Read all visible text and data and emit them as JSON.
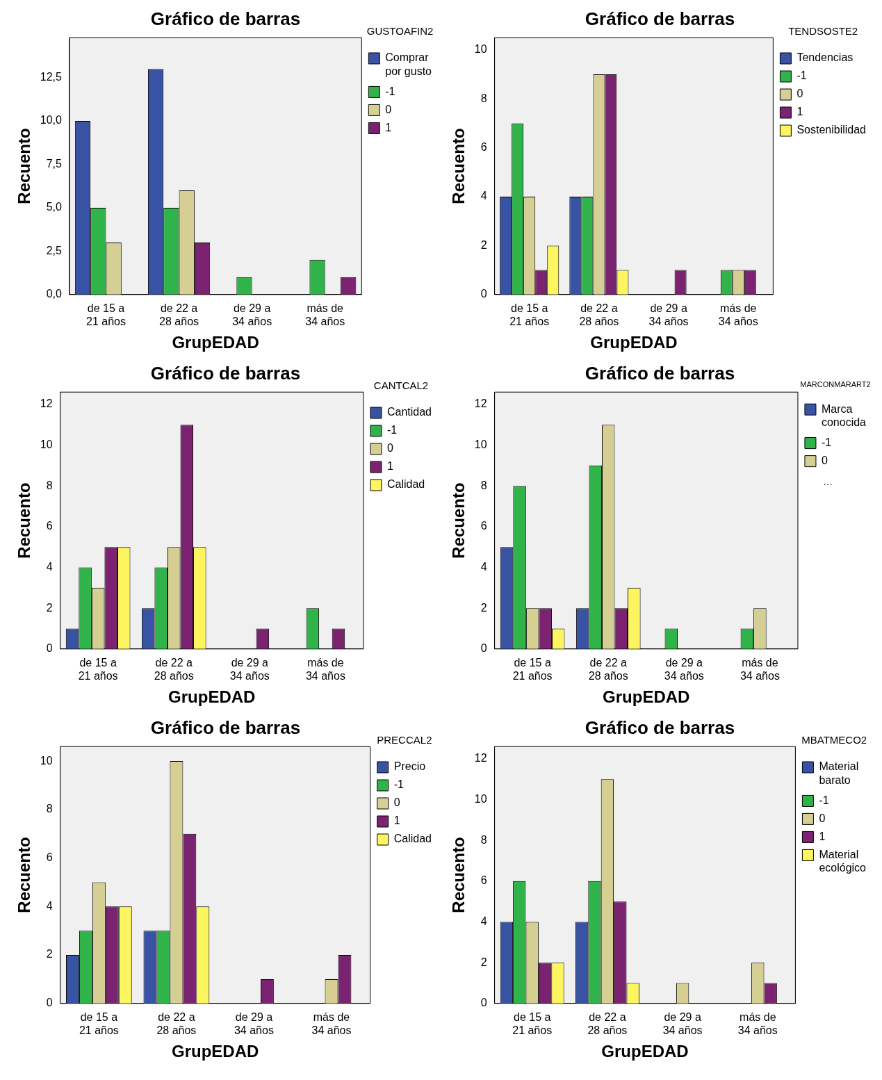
{
  "chart_data": [
    {
      "type": "bar",
      "title": "Gráfico de barras",
      "xlabel": "GrupEDAD",
      "ylabel": "Recuento",
      "legend_title": "GUSTOAFIN2",
      "legend": "right",
      "categories": [
        "de 15 a 21 años",
        "de 22 a 28 años",
        "de 29 a 34 años",
        "más de 34 años"
      ],
      "ylim": [
        0,
        14.8
      ],
      "yticks": [
        {
          "value": 0,
          "label": "0,0"
        },
        {
          "value": 2.5,
          "label": "2,5"
        },
        {
          "value": 5,
          "label": "5,0"
        },
        {
          "value": 7.5,
          "label": "7,5"
        },
        {
          "value": 10,
          "label": "10,0"
        },
        {
          "value": 12.5,
          "label": "12,5"
        }
      ],
      "grid": false,
      "series": [
        {
          "name": "Comprar por gusto",
          "color": "#3953a4",
          "values": [
            10,
            13,
            0,
            0
          ]
        },
        {
          "name": "-1",
          "color": "#30b44a",
          "values": [
            5,
            5,
            1,
            2
          ]
        },
        {
          "name": "0",
          "color": "#d5cf94",
          "values": [
            3,
            6,
            0,
            0
          ]
        },
        {
          "name": "1",
          "color": "#7b2270",
          "values": [
            0,
            3,
            0,
            1
          ]
        }
      ]
    },
    {
      "type": "bar",
      "title": "Gráfico de barras",
      "xlabel": "GrupEDAD",
      "ylabel": "Recuento",
      "legend_title": "TENDSOSTE2",
      "legend": "right",
      "categories": [
        "de 15 a 21 años",
        "de 22 a 28 años",
        "de 29 a 34 años",
        "más de 34 años"
      ],
      "ylim": [
        0,
        10.5
      ],
      "yticks": [
        0,
        2,
        4,
        6,
        8,
        10
      ],
      "grid": false,
      "series": [
        {
          "name": "Tendencias",
          "color": "#3953a4",
          "values": [
            4,
            4,
            0,
            0
          ]
        },
        {
          "name": "-1",
          "color": "#30b44a",
          "values": [
            7,
            4,
            0,
            1
          ]
        },
        {
          "name": "0",
          "color": "#d5cf94",
          "values": [
            4,
            9,
            0,
            1
          ]
        },
        {
          "name": "1",
          "color": "#7b2270",
          "values": [
            1,
            9,
            1,
            1
          ]
        },
        {
          "name": "Sostenibilidad",
          "color": "#fcf55f",
          "values": [
            2,
            1,
            0,
            0
          ]
        }
      ]
    },
    {
      "type": "bar",
      "title": "Gráfico de barras",
      "xlabel": "GrupEDAD",
      "ylabel": "Recuento",
      "legend_title": "CANTCAL2",
      "legend": "right",
      "categories": [
        "de 15 a 21 años",
        "de 22 a 28 años",
        "de 29 a 34 años",
        "más de 34 años"
      ],
      "ylim": [
        0,
        12.6
      ],
      "yticks": [
        0,
        2,
        4,
        6,
        8,
        10,
        12
      ],
      "grid": false,
      "series": [
        {
          "name": "Cantidad",
          "color": "#3953a4",
          "values": [
            1,
            2,
            0,
            0
          ]
        },
        {
          "name": "-1",
          "color": "#30b44a",
          "values": [
            4,
            4,
            0,
            2
          ]
        },
        {
          "name": "0",
          "color": "#d5cf94",
          "values": [
            3,
            5,
            0,
            0
          ]
        },
        {
          "name": "1",
          "color": "#7b2270",
          "values": [
            5,
            11,
            1,
            1
          ]
        },
        {
          "name": "Calidad",
          "color": "#fcf55f",
          "values": [
            5,
            5,
            0,
            0
          ]
        }
      ]
    },
    {
      "type": "bar",
      "title": "Gráfico de barras",
      "xlabel": "GrupEDAD",
      "ylabel": "Recuento",
      "legend_title": "MARCONMARART2",
      "legend": "right",
      "annotations": [
        "…"
      ],
      "categories": [
        "de 15 a 21 años",
        "de 22 a 28 años",
        "de 29 a 34 años",
        "más de 34 años"
      ],
      "ylim": [
        0,
        12.6
      ],
      "yticks": [
        0,
        2,
        4,
        6,
        8,
        10,
        12
      ],
      "grid": false,
      "series": [
        {
          "name": "Marca conocida",
          "color": "#3953a4",
          "values": [
            5,
            2,
            0,
            0
          ]
        },
        {
          "name": "-1",
          "color": "#30b44a",
          "values": [
            8,
            9,
            1,
            1
          ]
        },
        {
          "name": "0",
          "color": "#d5cf94",
          "values": [
            2,
            11,
            0,
            2
          ]
        },
        {
          "color": "#7b2270",
          "values": [
            2,
            2,
            0,
            0
          ]
        },
        {
          "color": "#fcf55f",
          "values": [
            1,
            3,
            0,
            0
          ]
        }
      ]
    },
    {
      "type": "bar",
      "title": "Gráfico de barras",
      "xlabel": "GrupEDAD",
      "ylabel": "Recuento",
      "legend_title": "PRECCAL2",
      "legend": "right",
      "categories": [
        "de 15 a 21 años",
        "de 22 a 28 años",
        "de 29 a 34 años",
        "más de 34 años"
      ],
      "ylim": [
        0,
        10.6
      ],
      "yticks": [
        0,
        2,
        4,
        6,
        8,
        10
      ],
      "grid": false,
      "series": [
        {
          "name": "Precio",
          "color": "#3953a4",
          "values": [
            2,
            3,
            0,
            0
          ]
        },
        {
          "name": "-1",
          "color": "#30b44a",
          "values": [
            3,
            3,
            0,
            0
          ]
        },
        {
          "name": "0",
          "color": "#d5cf94",
          "values": [
            5,
            10,
            0,
            1
          ]
        },
        {
          "name": "1",
          "color": "#7b2270",
          "values": [
            4,
            7,
            1,
            2
          ]
        },
        {
          "name": "Calidad",
          "color": "#fcf55f",
          "values": [
            4,
            4,
            0,
            0
          ]
        }
      ]
    },
    {
      "type": "bar",
      "title": "Gráfico de barras",
      "xlabel": "GrupEDAD",
      "ylabel": "Recuento",
      "legend_title": "MBATMECO2",
      "legend": "right",
      "categories": [
        "de 15 a 21 años",
        "de 22 a 28 años",
        "de 29 a 34 años",
        "más de 34 años"
      ],
      "ylim": [
        0,
        12.6
      ],
      "yticks": [
        0,
        2,
        4,
        6,
        8,
        10,
        12
      ],
      "grid": false,
      "series": [
        {
          "name": "Material barato",
          "color": "#3953a4",
          "values": [
            4,
            4,
            0,
            0
          ]
        },
        {
          "name": "-1",
          "color": "#30b44a",
          "values": [
            6,
            6,
            0,
            0
          ]
        },
        {
          "name": "0",
          "color": "#d5cf94",
          "values": [
            4,
            11,
            1,
            2
          ]
        },
        {
          "name": "1",
          "color": "#7b2270",
          "values": [
            2,
            5,
            0,
            1
          ]
        },
        {
          "name": "Material ecológico",
          "color": "#fcf55f",
          "values": [
            2,
            1,
            0,
            0
          ]
        }
      ]
    }
  ]
}
